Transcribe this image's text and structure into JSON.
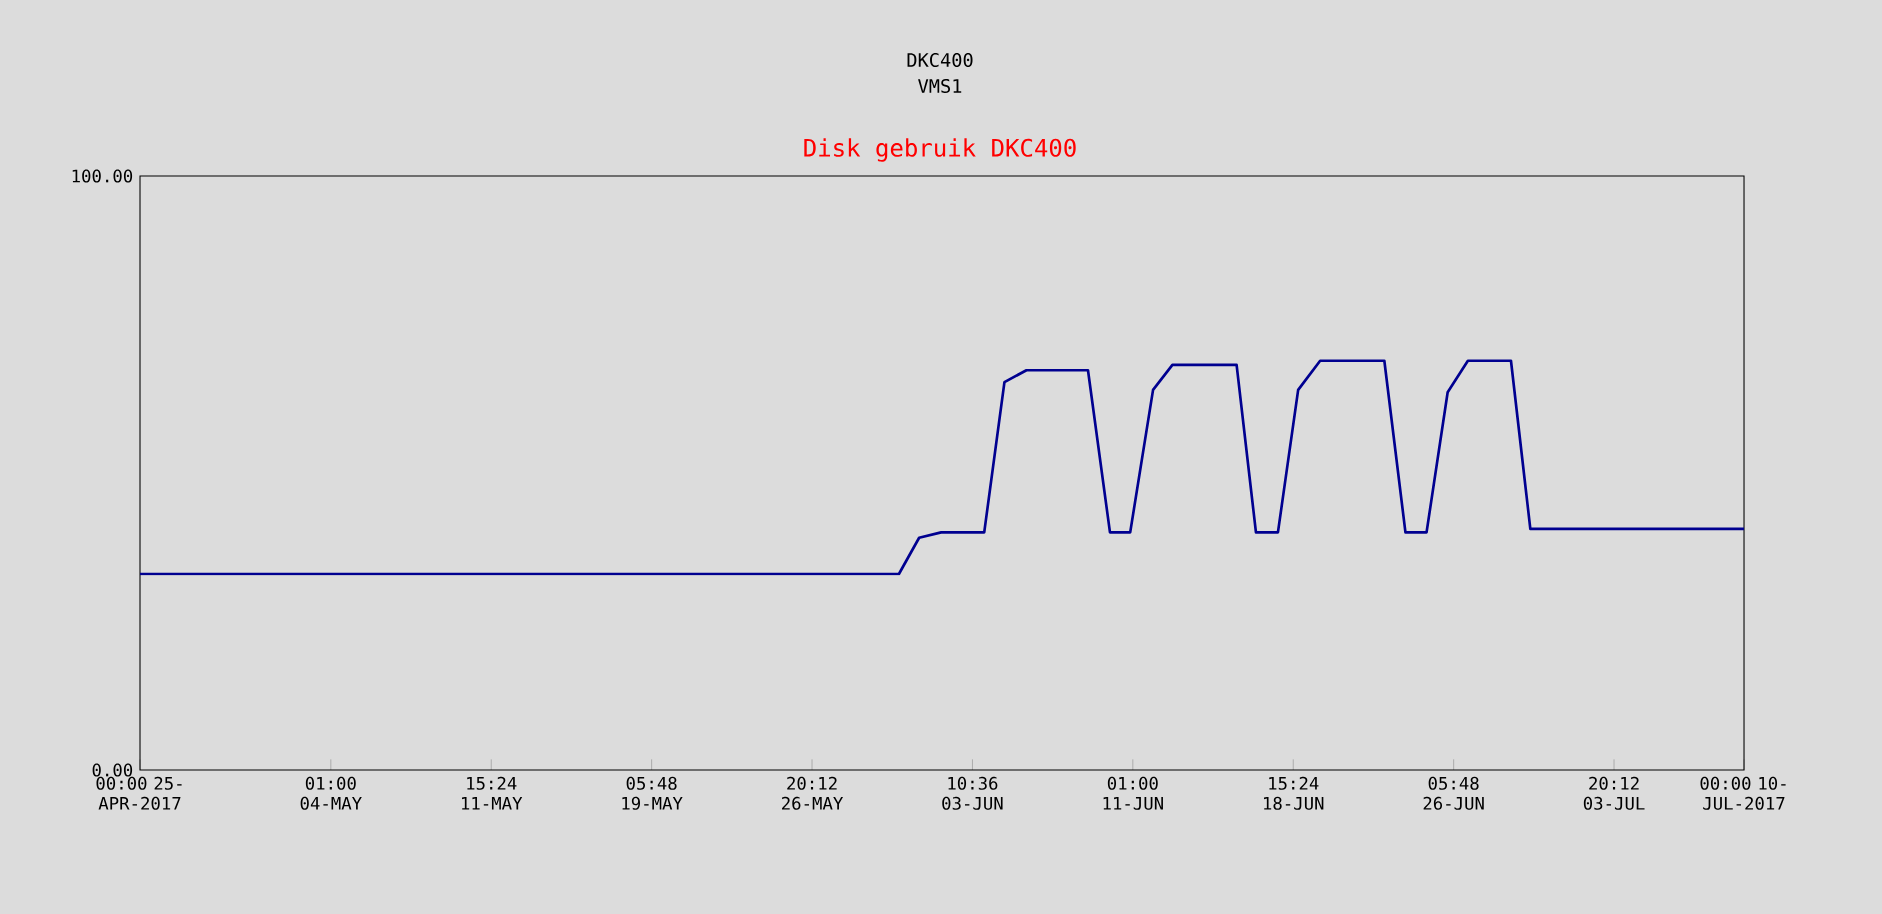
{
  "chart_data": {
    "type": "line",
    "title": "DKC400",
    "subtitle": "VMS1",
    "annotations": [
      "Disk gebruik DKC400"
    ],
    "x": [
      "2017-04-25T00:00",
      "2017-05-30T23:00",
      "2017-05-31T22:00",
      "2017-06-01T23:00",
      "2017-06-04T00:00",
      "2017-06-04T23:00",
      "2017-06-06T00:00",
      "2017-06-08T22:00",
      "2017-06-09T23:00",
      "2017-06-10T22:00",
      "2017-06-12T00:00",
      "2017-06-12T22:00",
      "2017-06-15T23:00",
      "2017-06-16T21:00",
      "2017-06-17T22:00",
      "2017-06-18T21:00",
      "2017-06-19T22:00",
      "2017-06-22T23:00",
      "2017-06-23T23:00",
      "2017-06-24T23:00",
      "2017-06-25T23:00",
      "2017-06-26T22:00",
      "2017-06-28T23:00",
      "2017-06-29T21:00",
      "2017-07-10T00:00"
    ],
    "series": [
      {
        "color": "#000090",
        "values": [
          33.0,
          33.0,
          39.1,
          40.0,
          40.0,
          65.3,
          67.3,
          67.3,
          40.0,
          40.0,
          64.0,
          68.2,
          68.2,
          40.0,
          40.0,
          64.0,
          68.9,
          68.9,
          40.0,
          40.0,
          63.6,
          68.9,
          68.9,
          40.6,
          40.6
        ]
      }
    ],
    "xlim": [
      "2017-04-25T00:00",
      "2017-07-10T00:00"
    ],
    "xticks": [
      {
        "value": "2017-04-25T00:00",
        "label": "00:00 25-APR-2017"
      },
      {
        "value": "2017-05-04T01:00",
        "label": "01:00 04-MAY"
      },
      {
        "value": "2017-05-11T15:24",
        "label": "15:24 11-MAY"
      },
      {
        "value": "2017-05-19T05:48",
        "label": "05:48 19-MAY"
      },
      {
        "value": "2017-05-26T20:12",
        "label": "20:12 26-MAY"
      },
      {
        "value": "2017-06-03T10:36",
        "label": "10:36 03-JUN"
      },
      {
        "value": "2017-06-11T01:00",
        "label": "01:00 11-JUN"
      },
      {
        "value": "2017-06-18T15:24",
        "label": "15:24 18-JUN"
      },
      {
        "value": "2017-06-26T05:48",
        "label": "05:48 26-JUN"
      },
      {
        "value": "2017-07-03T20:12",
        "label": "20:12 03-JUL"
      },
      {
        "value": "2017-07-10T00:00",
        "label": "00:00 10-JUL-2017"
      }
    ],
    "ylim": [
      0,
      100
    ],
    "yticks": [
      {
        "value": 0,
        "label": "0.00"
      },
      {
        "value": 100,
        "label": "100.00"
      }
    ],
    "line_style": "solid"
  }
}
